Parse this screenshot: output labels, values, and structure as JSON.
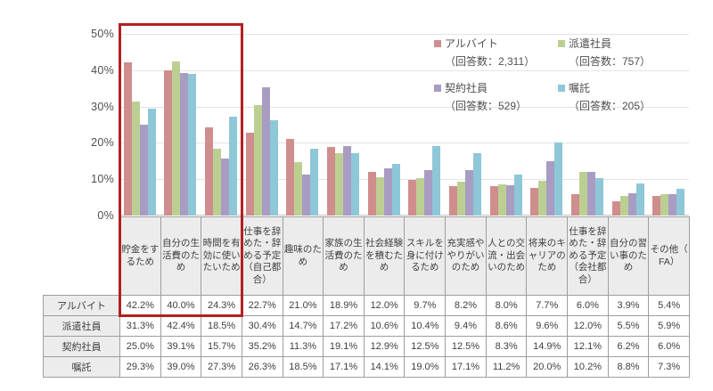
{
  "chart_data": {
    "type": "bar",
    "title": "",
    "xlabel": "",
    "ylabel": "",
    "ylim": [
      0,
      50
    ],
    "y_ticks": [
      "50%",
      "40%",
      "30%",
      "20%",
      "10%",
      "0%"
    ],
    "grid": true,
    "legend_position": "top-right-inside",
    "categories": [
      "貯金をするため",
      "自分の生活費のため",
      "時間を有効に使いたいため",
      "仕事を辞めた・辞める予定（自己都合）",
      "趣味のため",
      "家族の生活費のため",
      "社会経験を積むため",
      "スキルを身に付けるため",
      "充実感ややりがいのため",
      "人との交流・出会いのため",
      "将来のキャリアのため",
      "仕事を辞めた・辞める予定（会社都合）",
      "自分の習い事のため",
      "その他（FA）"
    ],
    "series": [
      {
        "name": "アルバイト",
        "respondents": "（回答数：2,311）",
        "color": "#cf8e8d",
        "values": [
          42.2,
          40.0,
          24.3,
          22.7,
          21.0,
          18.9,
          12.0,
          9.7,
          8.2,
          8.0,
          7.7,
          6.0,
          3.9,
          5.4
        ]
      },
      {
        "name": "派遣社員",
        "respondents": "（回答数：757）",
        "color": "#bccf92",
        "values": [
          31.3,
          42.4,
          18.5,
          30.4,
          14.7,
          17.2,
          10.6,
          10.4,
          9.4,
          8.6,
          9.6,
          12.0,
          5.5,
          5.9
        ]
      },
      {
        "name": "契約社員",
        "respondents": "（回答数：529）",
        "color": "#a89cc3",
        "values": [
          25.0,
          39.1,
          15.7,
          35.2,
          11.3,
          19.1,
          12.9,
          12.5,
          12.5,
          8.3,
          14.9,
          12.1,
          6.2,
          6.0
        ]
      },
      {
        "name": "嘱託",
        "respondents": "（回答数：205）",
        "color": "#8ec7d8",
        "values": [
          29.3,
          39.0,
          27.3,
          26.3,
          18.5,
          17.1,
          14.1,
          19.0,
          17.1,
          11.2,
          20.0,
          10.2,
          8.8,
          7.3
        ]
      }
    ],
    "highlight": {
      "color": "#b32020",
      "columns": [
        "貯金をするため",
        "自分の生活費のため",
        "時間を有効に使いたいため"
      ],
      "covers": "chart bars, category headers and アルバイト row values of first three columns"
    }
  },
  "table": {
    "row_headers": [
      "アルバイト",
      "派遣社員",
      "契約社員",
      "嘱託"
    ],
    "rows": [
      [
        "42.2%",
        "40.0%",
        "24.3%",
        "22.7%",
        "21.0%",
        "18.9%",
        "12.0%",
        "9.7%",
        "8.2%",
        "8.0%",
        "7.7%",
        "6.0%",
        "3.9%",
        "5.4%"
      ],
      [
        "31.3%",
        "42.4%",
        "18.5%",
        "30.4%",
        "14.7%",
        "17.2%",
        "10.6%",
        "10.4%",
        "9.4%",
        "8.6%",
        "9.6%",
        "12.0%",
        "5.5%",
        "5.9%"
      ],
      [
        "25.0%",
        "39.1%",
        "15.7%",
        "35.2%",
        "11.3%",
        "19.1%",
        "12.9%",
        "12.5%",
        "12.5%",
        "8.3%",
        "14.9%",
        "12.1%",
        "6.2%",
        "6.0%"
      ],
      [
        "29.3%",
        "39.0%",
        "27.3%",
        "26.3%",
        "18.5%",
        "17.1%",
        "14.1%",
        "19.0%",
        "17.1%",
        "11.2%",
        "20.0%",
        "10.2%",
        "8.8%",
        "7.3%"
      ]
    ]
  }
}
